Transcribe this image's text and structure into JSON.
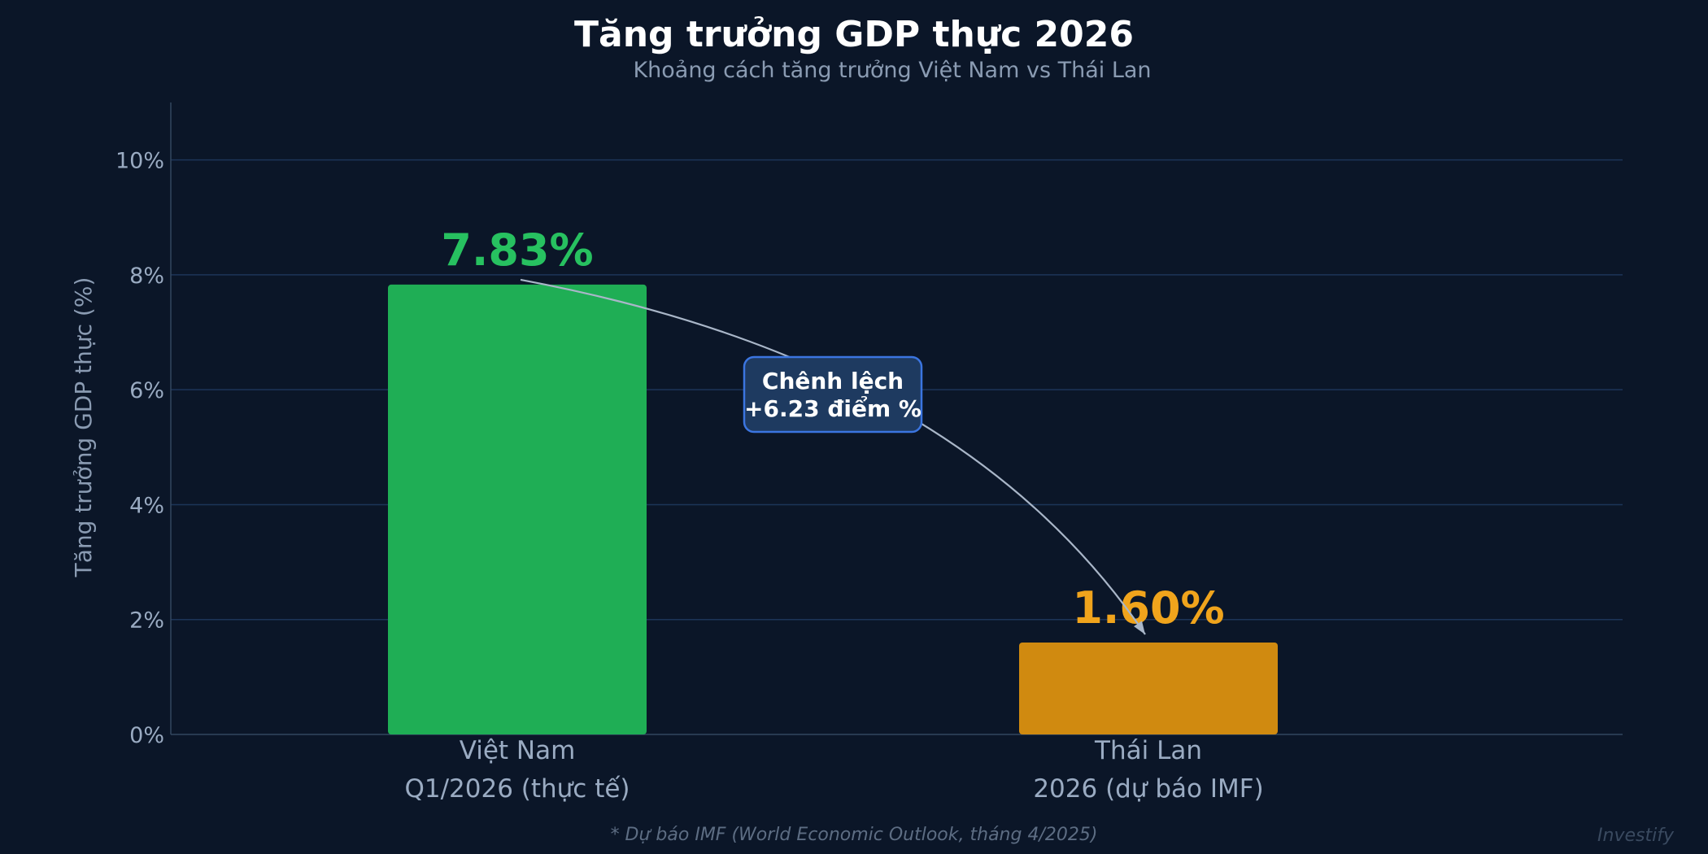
{
  "chart_data": {
    "type": "bar",
    "title": "Tăng trưởng GDP thực 2026",
    "subtitle": "Khoảng cách tăng trưởng Việt Nam vs Thái Lan",
    "xlabel": "",
    "ylabel": "Tăng trưởng GDP thực (%)",
    "ylim": [
      0,
      11
    ],
    "yticks": [
      0,
      2,
      4,
      6,
      8,
      10
    ],
    "ytick_labels": [
      "0%",
      "2%",
      "4%",
      "6%",
      "8%",
      "10%"
    ],
    "grid": true,
    "categories": [
      [
        "Việt Nam",
        "Q1/2026 (thực tế)"
      ],
      [
        "Thái Lan",
        "2026 (dự báo IMF)"
      ]
    ],
    "values": [
      7.83,
      1.6
    ],
    "value_labels": [
      "7.83%",
      "1.60%"
    ],
    "colors": [
      "#1fae55",
      "#d08a10"
    ],
    "label_colors": [
      "#27c160",
      "#f0a41c"
    ],
    "annotation": {
      "lines": [
        "Chênh lệch",
        "+6.23 điểm %"
      ]
    },
    "footnote": "* Dự báo IMF (World Economic Outlook, tháng 4/2025)",
    "watermark": "Investify"
  },
  "colors": {
    "background": "#0b1628",
    "grid": "#1c3558",
    "axis": "#33475f",
    "annotation_fill": "#1e3a60",
    "annotation_border": "#3b75e0",
    "arrow": "#a9b6c8"
  }
}
